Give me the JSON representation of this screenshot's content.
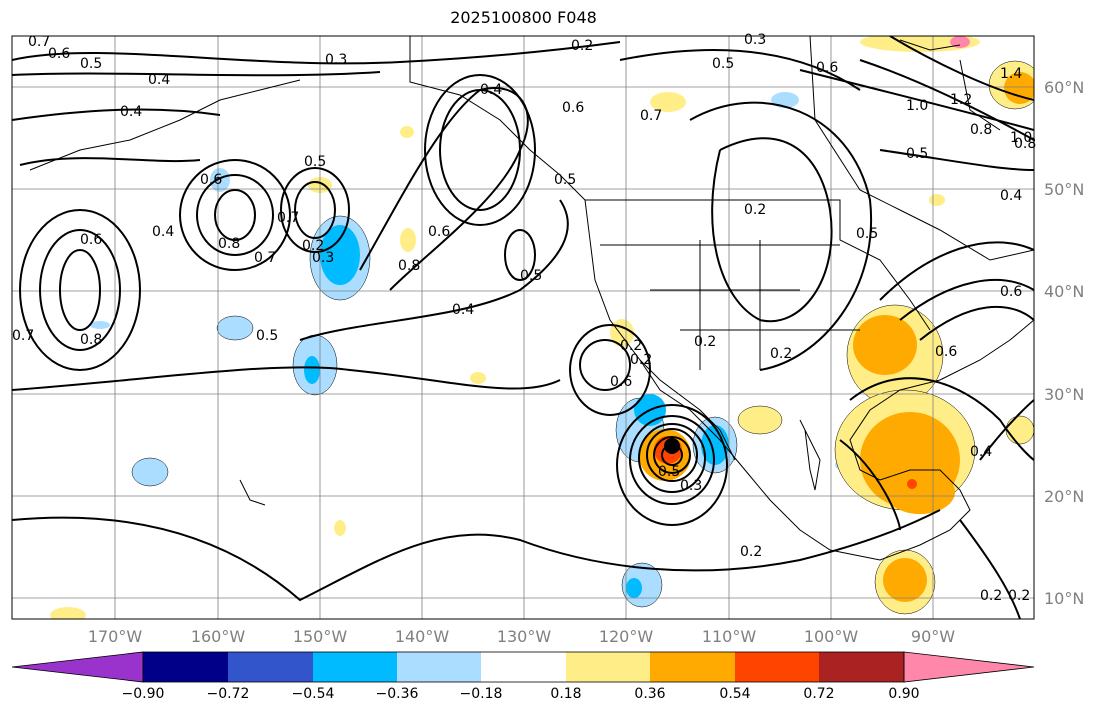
{
  "title": "2025100800 F048",
  "colors": {
    "land_line": "#000000",
    "grid": "#808080",
    "contour": "#000000",
    "tick_label": "#808080"
  },
  "lon_labels": [
    "170°W",
    "160°W",
    "150°W",
    "140°W",
    "130°W",
    "120°W",
    "110°W",
    "100°W",
    "90°W"
  ],
  "lat_labels": [
    "60°N",
    "50°N",
    "40°N",
    "30°N",
    "20°N",
    "10°N"
  ],
  "colorbar": {
    "colors": [
      "#9933cc",
      "#000088",
      "#3355cc",
      "#00bbff",
      "#aaddff",
      "#ffffff",
      "#ffee88",
      "#ffaa00",
      "#ff4400",
      "#aa2222",
      "#ff88aa"
    ],
    "ticks": [
      "−0.90",
      "−0.72",
      "−0.54",
      "−0.36",
      "−0.18",
      "0.18",
      "0.36",
      "0.54",
      "0.72",
      "0.90"
    ]
  },
  "contour_labels": [
    "0.7",
    "0.6",
    "0.5",
    "0.4",
    "0.3",
    "0.2",
    "0.2",
    "0.3",
    "0.5",
    "0.6",
    "0.6",
    "0.4",
    "0.8",
    "0.7",
    "0.7",
    "0.8",
    "0.6",
    "0.5",
    "0.4",
    "0.7",
    "0.5",
    "0.6",
    "0.5",
    "0.4",
    "0.6",
    "0.2",
    "0.2",
    "0.3",
    "0.2",
    "1.0",
    "1.2",
    "1.0",
    "0.8",
    "0.5",
    "0.5",
    "0.2",
    "0.6",
    "0.3",
    "0.6",
    "0.4",
    "0.2",
    "0.2",
    "0.5",
    "0.4",
    "0.6",
    "0.2",
    "0.2",
    "0.8",
    "0.7",
    "0.4",
    "0.5",
    "1.4",
    "0.8"
  ]
}
